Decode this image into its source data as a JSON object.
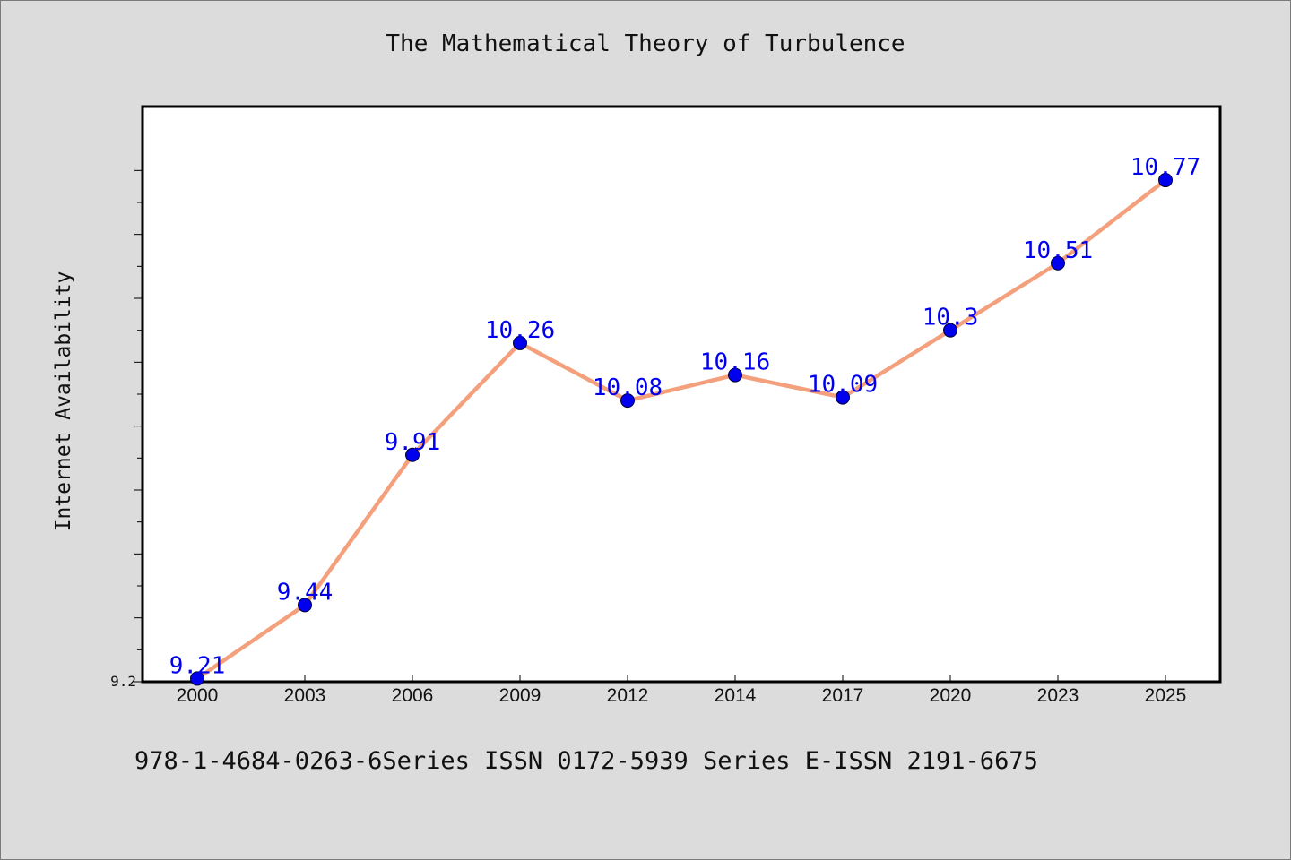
{
  "title": "The Mathematical Theory of Turbulence",
  "footer": "978-1-4684-0263-6Series ISSN 0172-5939 Series E-ISSN 2191-6675",
  "colors": {
    "background": "#dcdcdc",
    "plot_background": "#ffffff",
    "line": "#f4a07c",
    "marker": "#0000ee",
    "data_label": "#0000ee"
  },
  "chart_data": {
    "type": "line",
    "title": "The Mathematical Theory of Turbulence",
    "xlabel": "",
    "ylabel": "Internet Availability",
    "categories": [
      "2000",
      "2003",
      "2006",
      "2009",
      "2012",
      "2014",
      "2017",
      "2020",
      "2023",
      "2025"
    ],
    "series": [
      {
        "values": [
          9.21,
          9.44,
          9.91,
          10.26,
          10.08,
          10.16,
          10.09,
          10.3,
          10.51,
          10.77
        ]
      }
    ],
    "data_labels": [
      "9.21",
      "9.44",
      "9.91",
      "10.26",
      "10.08",
      "10.16",
      "10.09",
      "10.3",
      "10.51",
      "10.77"
    ],
    "y_tick_labels": [
      "9.2"
    ],
    "ylim": [
      9.2,
      11.0
    ],
    "grid": false,
    "legend": "none"
  }
}
